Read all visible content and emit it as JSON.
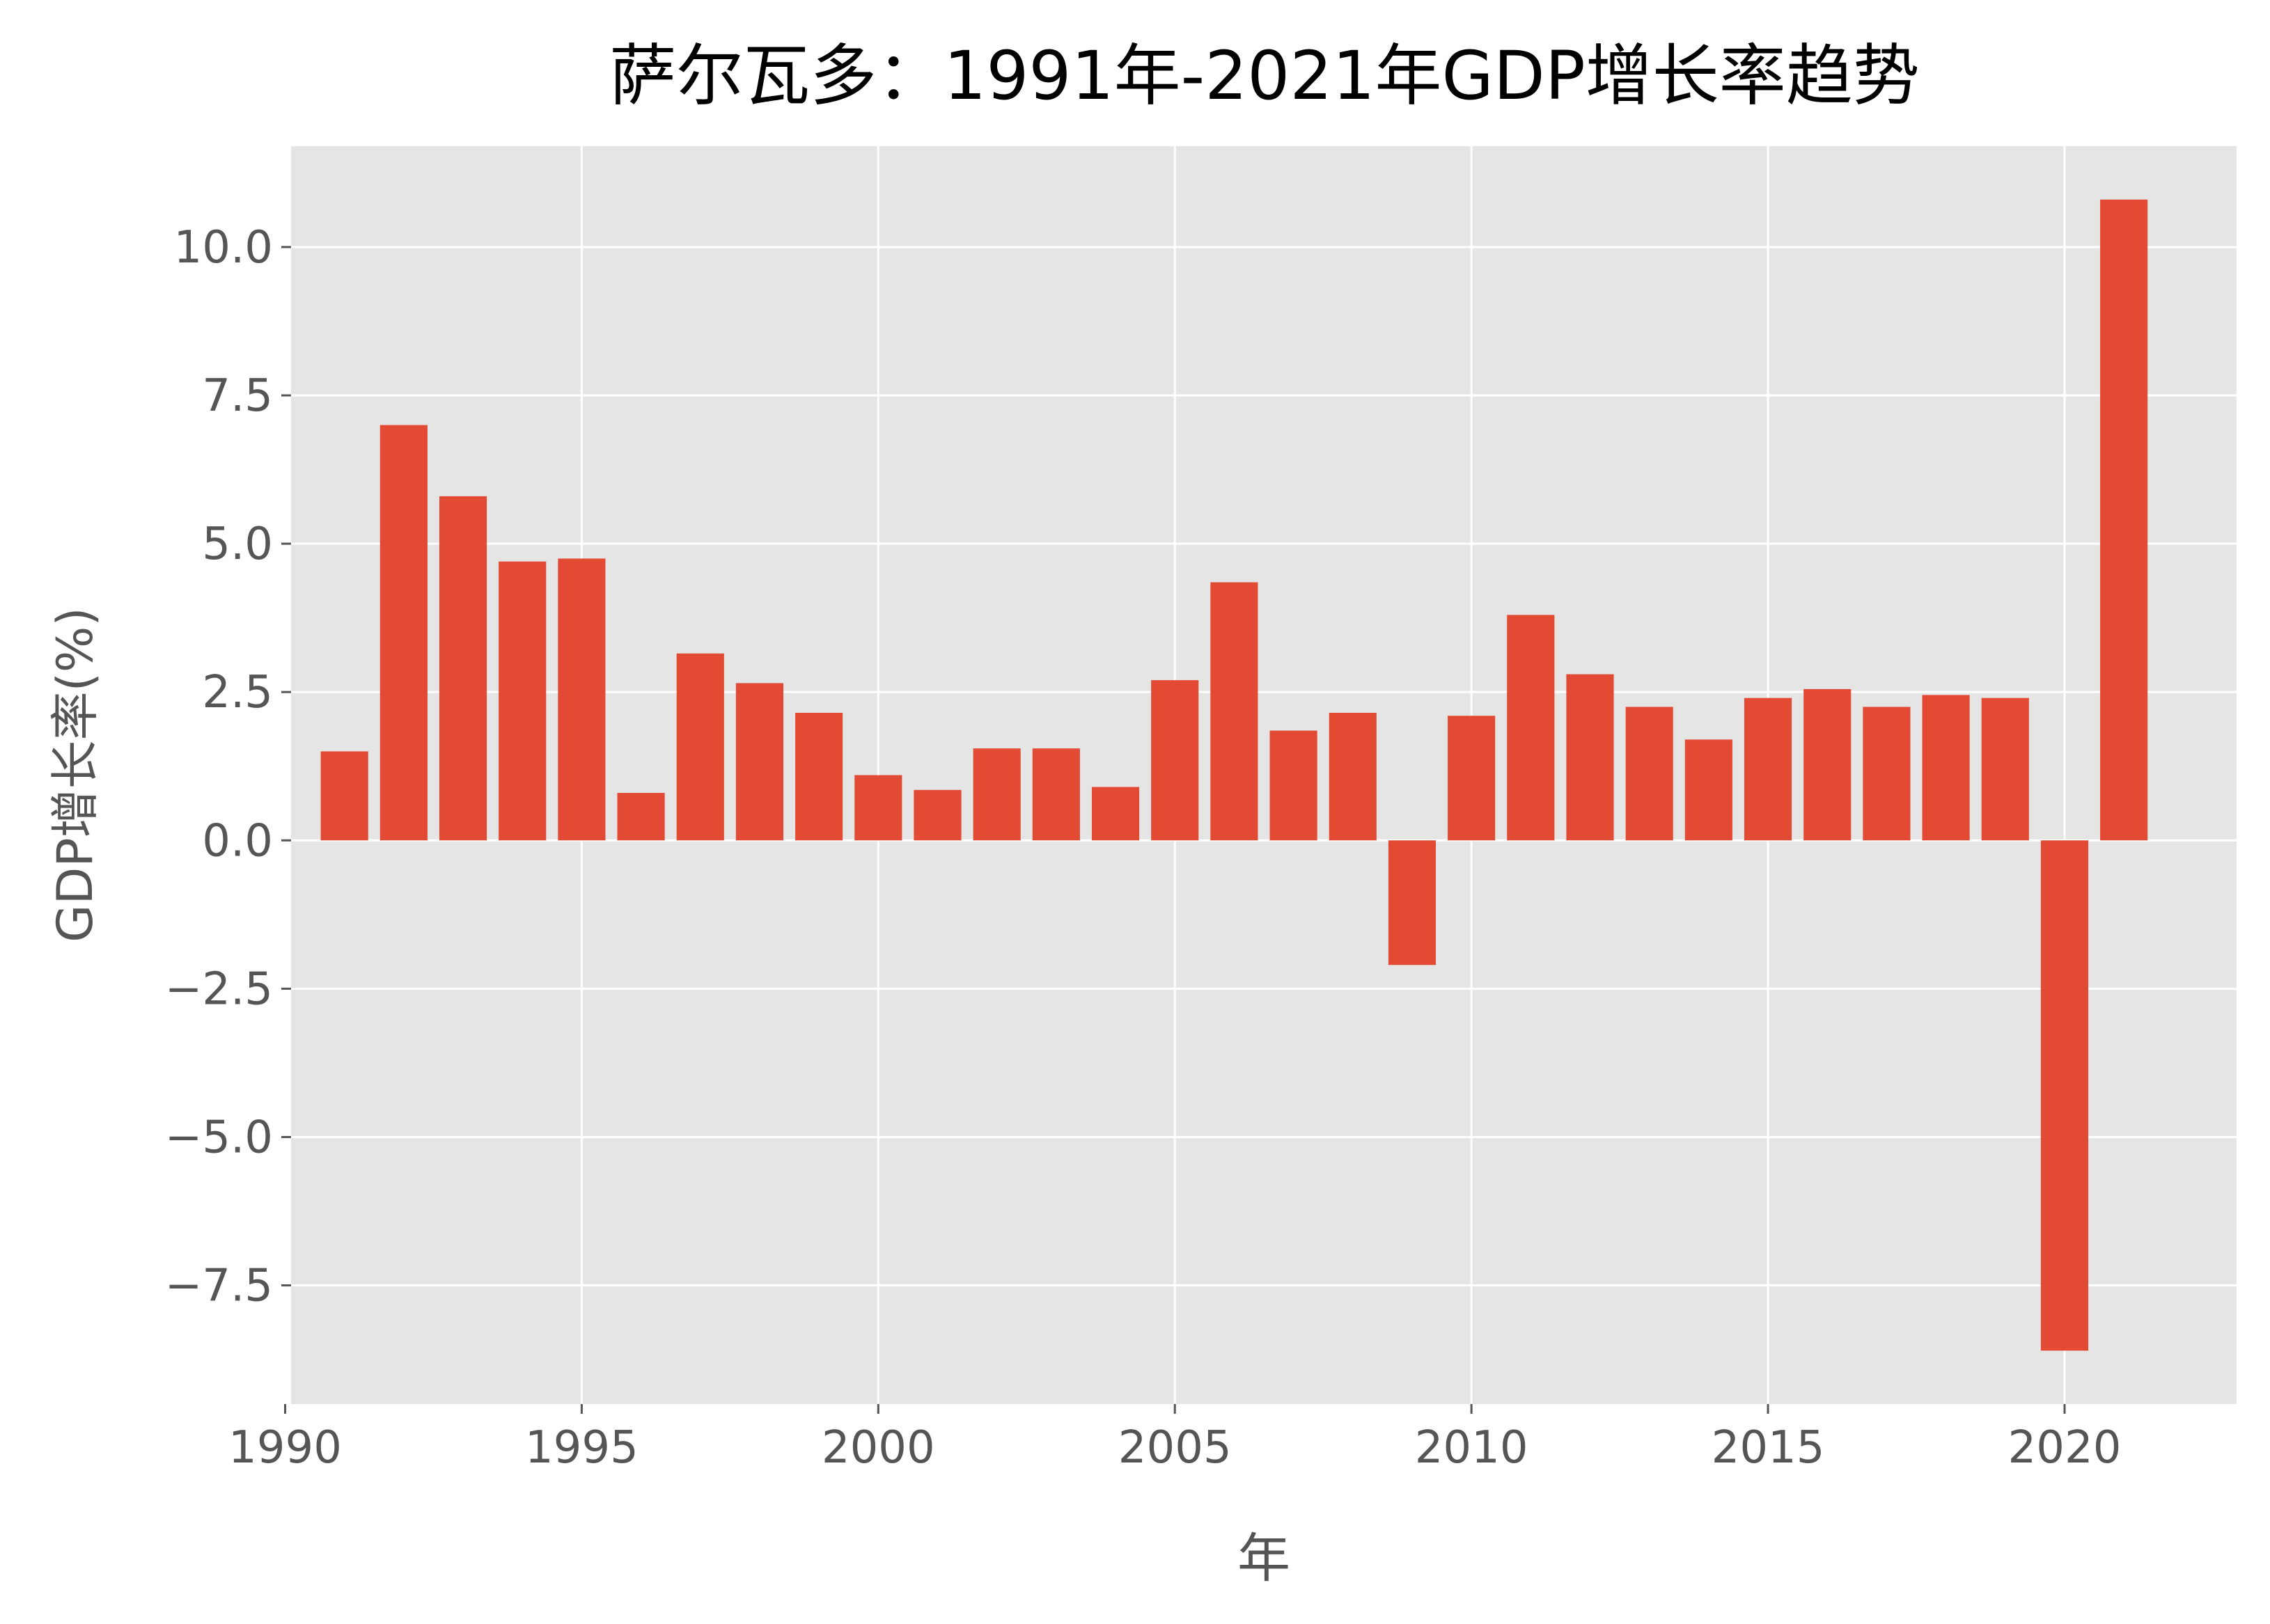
{
  "chart_data": {
    "type": "bar",
    "title": "萨尔瓦多：1991年-2021年GDP增长率趋势",
    "xlabel": "年",
    "ylabel": "GDP增长率(%)",
    "x": [
      1991,
      1992,
      1993,
      1994,
      1995,
      1996,
      1997,
      1998,
      1999,
      2000,
      2001,
      2002,
      2003,
      2004,
      2005,
      2006,
      2007,
      2008,
      2009,
      2010,
      2011,
      2012,
      2013,
      2014,
      2015,
      2016,
      2017,
      2018,
      2019,
      2020,
      2021
    ],
    "values": [
      1.5,
      7.0,
      5.8,
      4.7,
      4.75,
      0.8,
      3.15,
      2.65,
      2.15,
      1.1,
      0.85,
      1.55,
      1.55,
      0.9,
      2.7,
      4.35,
      1.85,
      2.15,
      -2.1,
      2.1,
      3.8,
      2.8,
      2.25,
      1.7,
      2.4,
      2.55,
      2.25,
      2.45,
      2.4,
      -8.6,
      10.8
    ],
    "xlim": [
      1990.1,
      2022.9
    ],
    "ylim": [
      -9.5,
      11.7
    ],
    "x_ticks": [
      1990,
      1995,
      2000,
      2005,
      2010,
      2015,
      2020
    ],
    "y_ticks": [
      -7.5,
      -5.0,
      -2.5,
      0.0,
      2.5,
      5.0,
      7.5,
      10.0
    ],
    "x_tick_labels": [
      "1990",
      "1995",
      "2000",
      "2005",
      "2010",
      "2015",
      "2020"
    ],
    "y_tick_labels": [
      "−7.5",
      "−5.0",
      "−2.5",
      "0.0",
      "2.5",
      "5.0",
      "7.5",
      "10.0"
    ],
    "bar_color": "#E24A33",
    "background_color": "#E5E5E5",
    "grid": true,
    "grid_color": "#FFFFFF",
    "text_color": "#555555",
    "title_color": "#000000"
  }
}
